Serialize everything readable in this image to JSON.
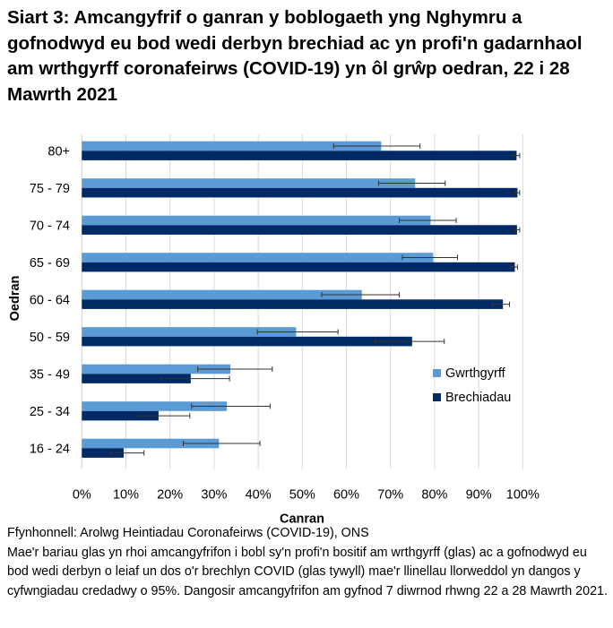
{
  "title": "Siart 3: Amcangyfrif o ganran y boblogaeth yng Nghymru a gofnodwyd eu bod wedi derbyn brechiad ac yn profi'n gadarnhaol am wrthgyrff coronafeirws (COVID-19) yn ôl grŵp oedran, 22 i 28 Mawrth 2021",
  "chart_data": {
    "type": "bar",
    "orientation": "horizontal",
    "categories": [
      "80+",
      "75 - 79",
      "70 - 74",
      "65 - 69",
      "60 - 64",
      "50 - 59",
      "35 - 49",
      "25 - 34",
      "16 - 24"
    ],
    "series": [
      {
        "name": "Gwrthgyrff",
        "color": "#5B9BD5",
        "values": [
          67.9,
          75.6,
          79.1,
          79.7,
          63.5,
          48.6,
          33.7,
          32.9,
          31.1
        ],
        "lower": [
          57.1,
          67.3,
          72.0,
          72.7,
          54.4,
          39.8,
          26.3,
          24.9,
          23.0
        ],
        "upper": [
          76.7,
          82.4,
          84.9,
          85.2,
          72.0,
          58.1,
          43.2,
          42.7,
          40.4
        ]
      },
      {
        "name": "Brechiadau",
        "color": "#002A66",
        "values": [
          98.6,
          98.8,
          98.7,
          98.2,
          95.5,
          74.9,
          24.7,
          17.4,
          9.5
        ],
        "lower": [
          97.8,
          98.2,
          98.2,
          97.3,
          93.2,
          66.5,
          17.9,
          12.4,
          6.6
        ],
        "upper": [
          99.3,
          99.3,
          99.3,
          98.8,
          97.0,
          82.2,
          33.5,
          24.5,
          14.1
        ]
      }
    ],
    "xlabel": "Canran",
    "ylabel": "Oedran",
    "xlim": [
      0,
      100
    ],
    "xticks": [
      "0%",
      "10%",
      "20%",
      "30%",
      "40%",
      "50%",
      "60%",
      "70%",
      "80%",
      "90%",
      "100%"
    ],
    "grid": true,
    "legend": "right"
  },
  "footer": {
    "source": "Ffynhonnell: Arolwg Heintiadau Coronafeirws (COVID-19), ONS",
    "note": "Mae'r bariau glas yn rhoi amcangyfrifon i bobl sy'n profi'n bositif am wrthgyrff (glas) ac a gofnodwyd eu bod wedi derbyn o leiaf un dos o'r brechlyn COVID (glas tywyll) mae'r llinellau llorweddol yn dangos y cyfwngiadau credadwy o 95%. Dangosir amcangyfrifon am gyfnod 7 diwrnod rhwng 22 a 28 Mawrth 2021."
  }
}
